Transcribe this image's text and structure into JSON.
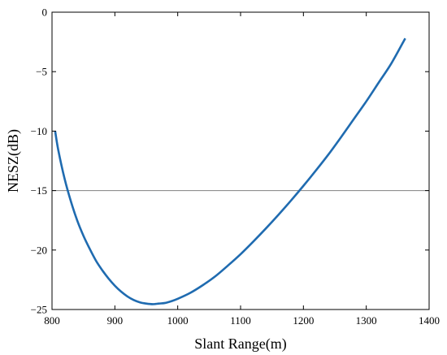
{
  "chart_data": {
    "type": "line",
    "title": "",
    "xlabel": "Slant Range(m)",
    "ylabel": "NESZ(dB)",
    "xlim": [
      800,
      1400
    ],
    "ylim": [
      -25,
      0
    ],
    "xticks": [
      800,
      900,
      1000,
      1100,
      1200,
      1300,
      1400
    ],
    "yticks": [
      0,
      -5,
      -10,
      -15,
      -20,
      -25
    ],
    "xtick_labels": [
      "800",
      "900",
      "1000",
      "1100",
      "1200",
      "1300",
      "1400"
    ],
    "ytick_labels": [
      "0",
      "−5",
      "−10",
      "−15",
      "−20",
      "−25"
    ],
    "grid": false,
    "reference_lines": [
      {
        "axis": "y",
        "value": -15,
        "color": "#808080"
      }
    ],
    "series": [
      {
        "color": "#1f6bb0",
        "x": [
          805,
          810,
          820,
          830,
          840,
          850,
          860,
          870,
          880,
          890,
          900,
          910,
          920,
          930,
          940,
          950,
          960,
          970,
          980,
          990,
          1000,
          1020,
          1040,
          1060,
          1080,
          1100,
          1120,
          1140,
          1160,
          1180,
          1200,
          1220,
          1240,
          1260,
          1280,
          1300,
          1320,
          1340,
          1362
        ],
        "y": [
          -10.0,
          -11.6,
          -14.0,
          -15.9,
          -17.5,
          -18.8,
          -19.9,
          -20.9,
          -21.7,
          -22.4,
          -23.0,
          -23.5,
          -23.9,
          -24.2,
          -24.4,
          -24.5,
          -24.55,
          -24.5,
          -24.45,
          -24.3,
          -24.1,
          -23.6,
          -22.95,
          -22.2,
          -21.3,
          -20.35,
          -19.3,
          -18.2,
          -17.05,
          -15.85,
          -14.6,
          -13.3,
          -11.95,
          -10.5,
          -9.0,
          -7.5,
          -5.9,
          -4.3,
          -2.2
        ]
      }
    ]
  }
}
